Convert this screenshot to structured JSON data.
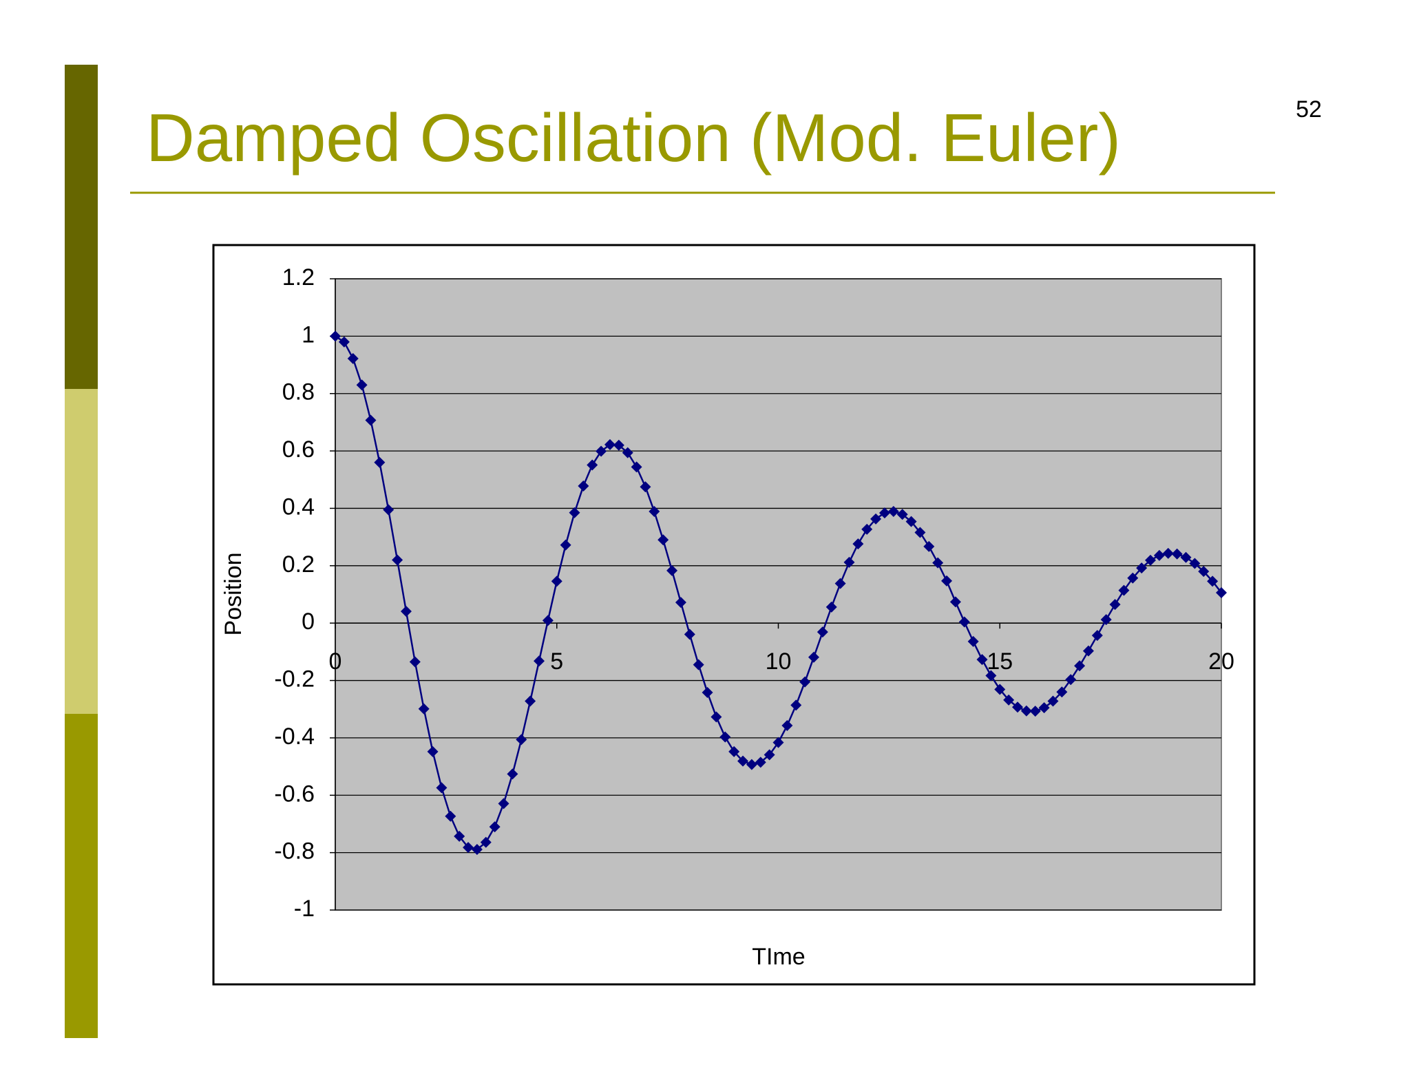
{
  "slide": {
    "page_number": "52"
  },
  "chart_data": {
    "type": "line",
    "title": "Damped Oscillation (Mod. Euler)",
    "x_label": "TIme",
    "y_label": "Position",
    "x": [
      0,
      0.2,
      0.4,
      0.6,
      0.8,
      1,
      1.2,
      1.4,
      1.6,
      1.8,
      2,
      2.2,
      2.4,
      2.6,
      2.8,
      3,
      3.2,
      3.4,
      3.6,
      3.8,
      4,
      4.2,
      4.4,
      4.6,
      4.8,
      5,
      5.2,
      5.4,
      5.6,
      5.8,
      6,
      6.2,
      6.4,
      6.6,
      6.8,
      7,
      7.2,
      7.4,
      7.6,
      7.8,
      8,
      8.2,
      8.4,
      8.6,
      8.8,
      9,
      9.2,
      9.4,
      9.6,
      9.8,
      10,
      10.2,
      10.4,
      10.6,
      10.8,
      11,
      11.2,
      11.4,
      11.6,
      11.8,
      12,
      12.2,
      12.4,
      12.6,
      12.8,
      13,
      13.2,
      13.4,
      13.6,
      13.8,
      14,
      14.2,
      14.4,
      14.6,
      14.8,
      15,
      15.2,
      15.4,
      15.6,
      15.8,
      16,
      16.2,
      16.4,
      16.6,
      16.8,
      17,
      17.2,
      17.4,
      17.6,
      17.8,
      18,
      18.2,
      18.4,
      18.6,
      18.8,
      19,
      19.2,
      19.4,
      19.6,
      19.8,
      20
    ],
    "series": [
      {
        "name": "Position",
        "color": "#000080",
        "values": [
          1,
          0.98,
          0.922,
          0.83,
          0.707,
          0.56,
          0.395,
          0.22,
          0.041,
          -0.135,
          -0.299,
          -0.448,
          -0.574,
          -0.673,
          -0.743,
          -0.782,
          -0.789,
          -0.764,
          -0.71,
          -0.629,
          -0.526,
          -0.406,
          -0.272,
          -0.132,
          0.009,
          0.146,
          0.272,
          0.385,
          0.478,
          0.551,
          0.599,
          0.622,
          0.62,
          0.594,
          0.544,
          0.475,
          0.389,
          0.29,
          0.183,
          0.072,
          -0.039,
          -0.145,
          -0.242,
          -0.327,
          -0.397,
          -0.448,
          -0.481,
          -0.493,
          -0.485,
          -0.459,
          -0.416,
          -0.357,
          -0.286,
          -0.205,
          -0.119,
          -0.031,
          0.056,
          0.138,
          0.212,
          0.276,
          0.327,
          0.363,
          0.384,
          0.389,
          0.379,
          0.354,
          0.316,
          0.267,
          0.21,
          0.147,
          0.074,
          0.004,
          -0.064,
          -0.127,
          -0.183,
          -0.231,
          -0.268,
          -0.293,
          -0.306,
          -0.307,
          -0.295,
          -0.272,
          -0.24,
          -0.197,
          -0.149,
          -0.097,
          -0.043,
          0.012,
          0.065,
          0.114,
          0.157,
          0.192,
          0.219,
          0.236,
          0.243,
          0.241,
          0.229,
          0.208,
          0.18,
          0.146,
          0.106
        ]
      }
    ],
    "xlim": [
      0,
      20
    ],
    "xticks": [
      0,
      5,
      10,
      15,
      20
    ],
    "ylim": [
      -1,
      1.2
    ],
    "yticks": [
      -1,
      -0.8,
      -0.6,
      -0.4,
      -0.2,
      0,
      0.2,
      0.4,
      0.6,
      0.8,
      1,
      1.2
    ],
    "grid": true,
    "plot_background": "#c0c0c0"
  }
}
